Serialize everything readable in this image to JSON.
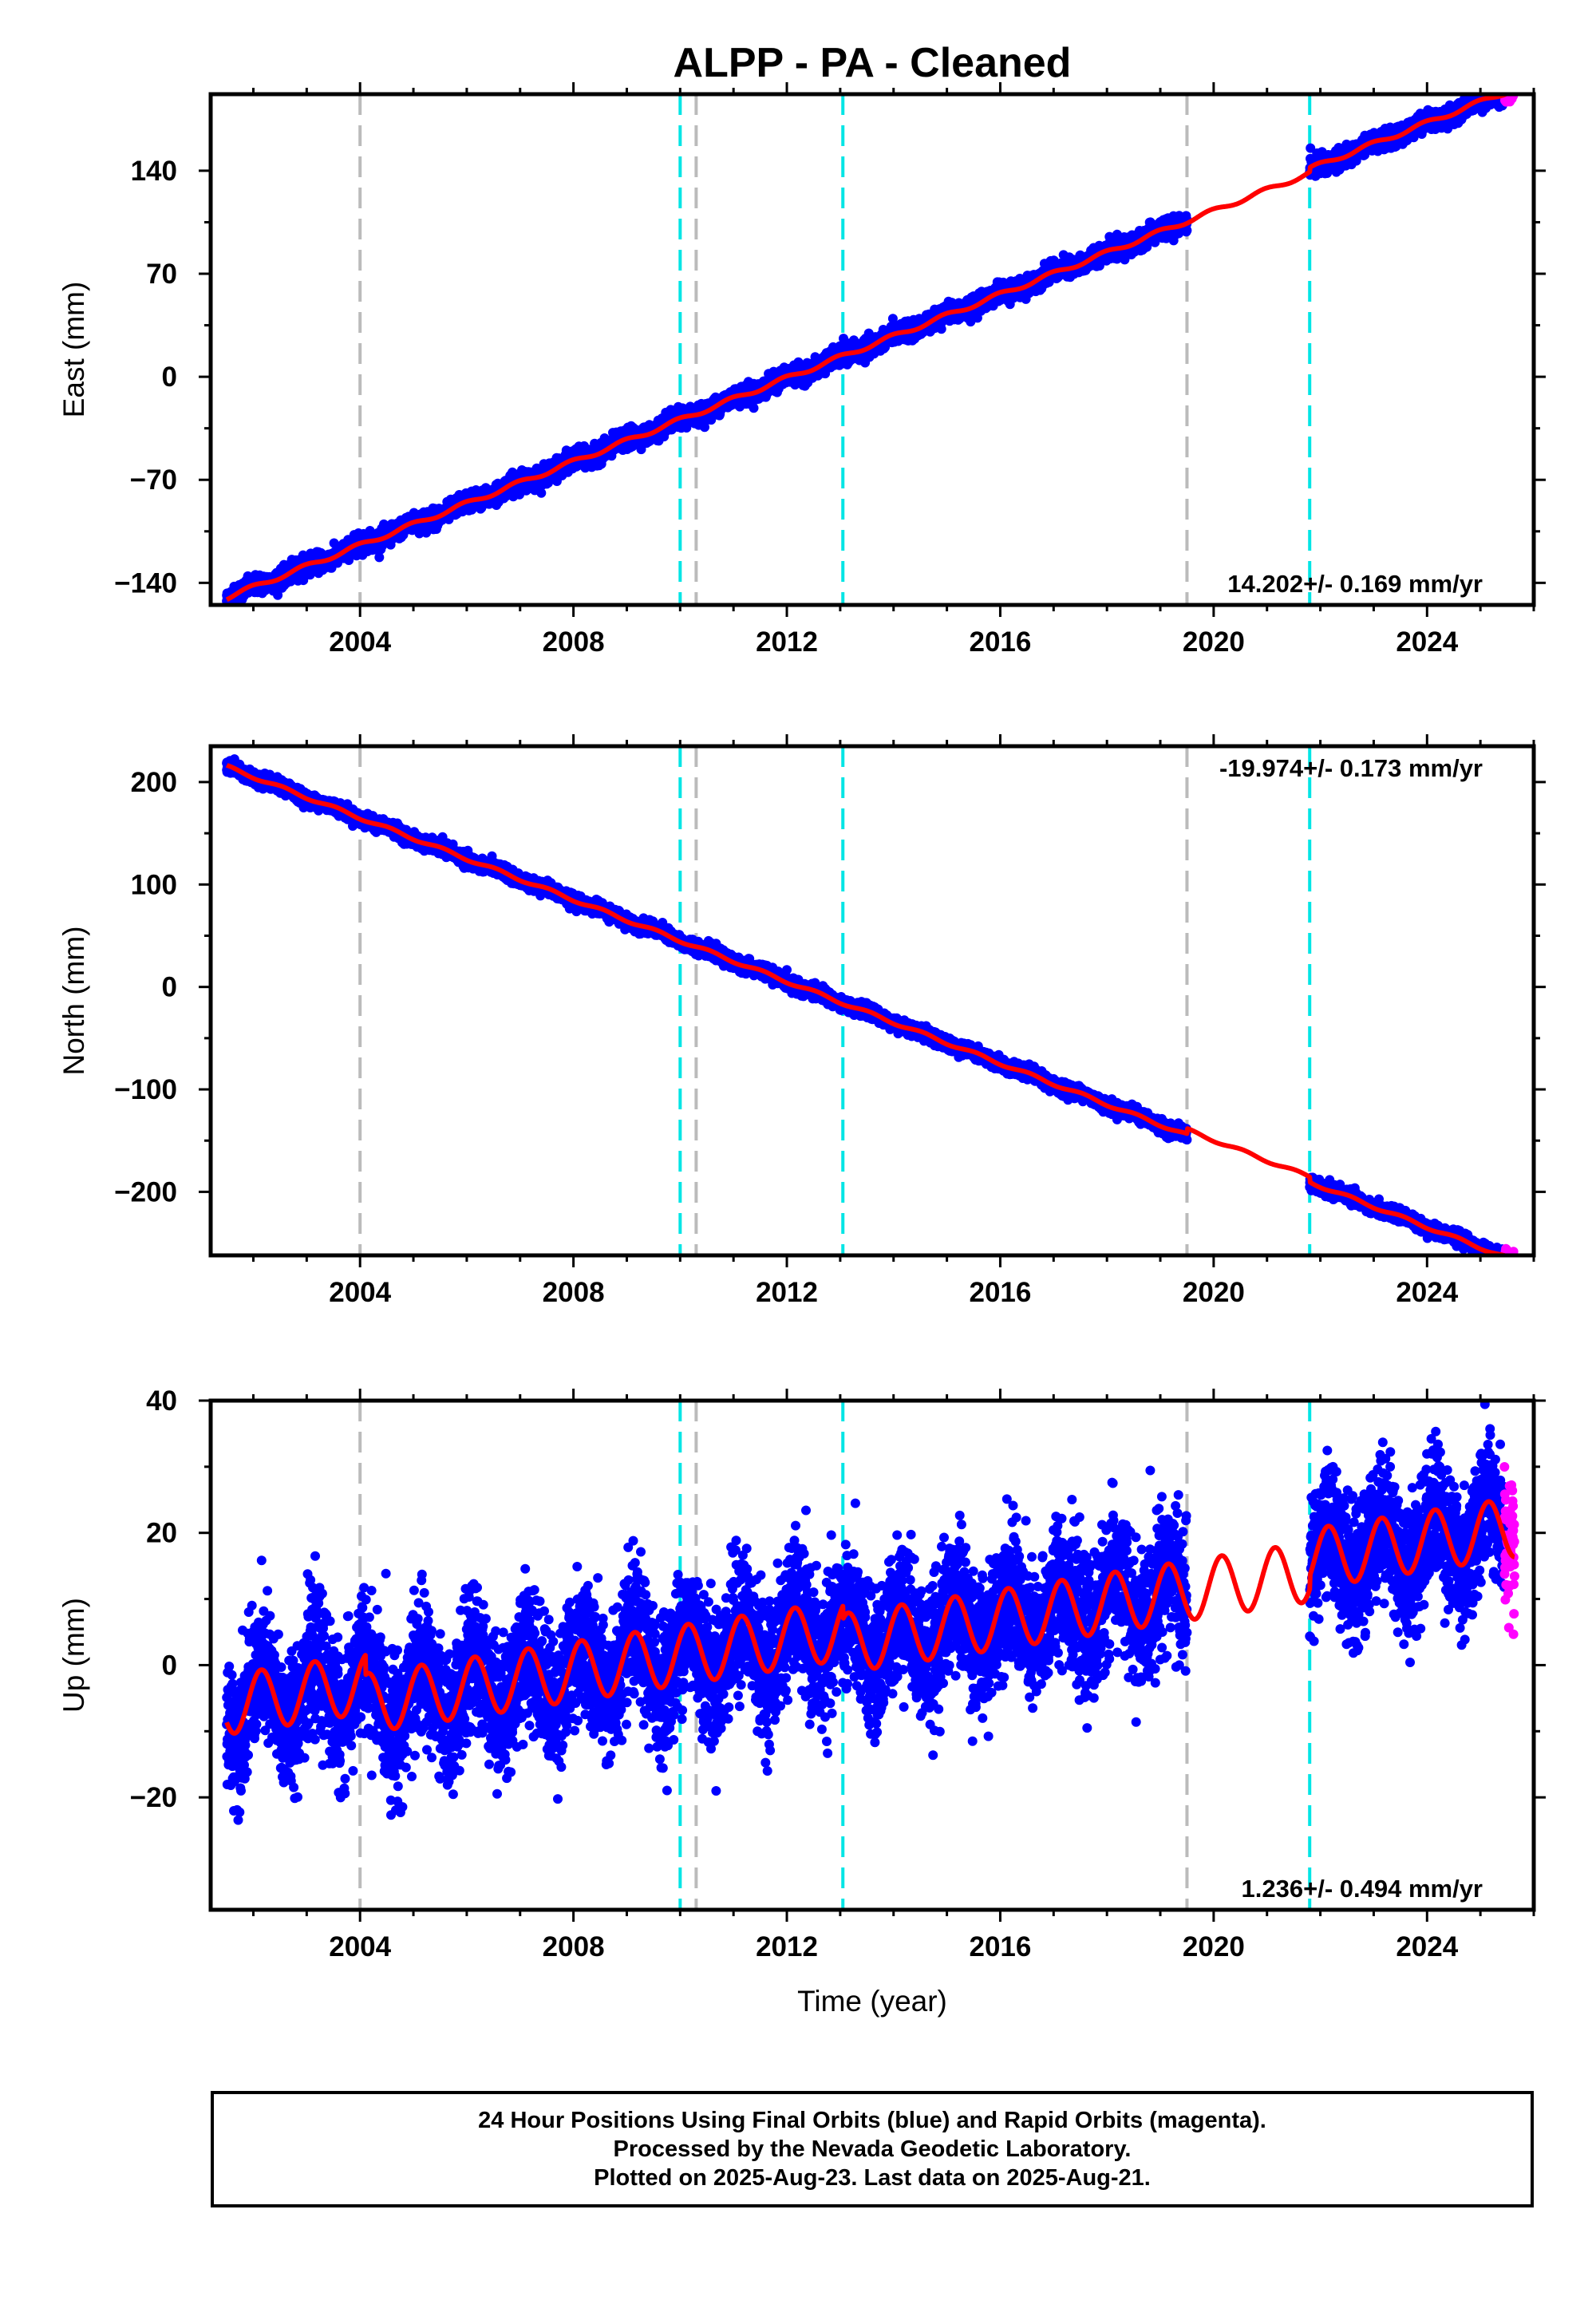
{
  "chart_data": {
    "type": "scatter",
    "title": "ALPP  - PA - Cleaned",
    "xlabel": "Time (year)",
    "x_ticks": [
      2004,
      2008,
      2012,
      2016,
      2020,
      2024
    ],
    "x_range": [
      2001.2,
      2026.0
    ],
    "grid": false,
    "data_start": 2001.5,
    "data_end": 2025.64,
    "data_gap": [
      2019.5,
      2021.8
    ],
    "rapid_start": 2025.45,
    "equipment_changes_gray": [
      2004.0,
      2010.3,
      2019.5
    ],
    "equipment_changes_cyan": [
      2010.0,
      2013.05,
      2021.8
    ],
    "colors": {
      "final_orbits": "#0000ff",
      "rapid_orbits": "#ff00ff",
      "model": "#ff0000",
      "gray_line": "#bbbbbb",
      "cyan_line": "#00e5e5",
      "frame": "#000000"
    },
    "panels": [
      {
        "ylabel": "East (mm)",
        "ylim": [
          -155,
          192
        ],
        "y_ticks": [
          -140,
          -70,
          0,
          70,
          140
        ],
        "y_tick_labels": [
          "−140",
          "−70",
          "0",
          "70",
          "140"
        ],
        "rate_label": "14.202+/- 0.169 mm/yr",
        "rate_position": "bottom-right",
        "model": {
          "start_value": -150,
          "rate": 14.202,
          "seasonal_amplitude": 1.5,
          "seasonal_phase": 0.3,
          "offsets": [
            {
              "year": 2021.8,
              "value": 3
            }
          ]
        },
        "scatter": 3
      },
      {
        "ylabel": "North (mm)",
        "ylim": [
          -262,
          235
        ],
        "y_ticks": [
          -200,
          -100,
          0,
          100,
          200
        ],
        "y_tick_labels": [
          "−200",
          "−100",
          "0",
          "100",
          "200"
        ],
        "rate_label": "-19.974+/- 0.173 mm/yr",
        "rate_position": "top-right",
        "model": {
          "start_value": 215,
          "rate": -19.974,
          "seasonal_amplitude": 1.5,
          "seasonal_phase": 0.7,
          "offsets": [
            {
              "year": 2019.5,
              "value": 5
            },
            {
              "year": 2021.8,
              "value": -5
            }
          ]
        },
        "scatter": 3
      },
      {
        "ylabel": "Up (mm)",
        "ylim": [
          -37,
          40
        ],
        "y_ticks": [
          -20,
          0,
          20,
          40
        ],
        "y_tick_labels": [
          "−20",
          "0",
          "20",
          "40"
        ],
        "rate_label": "1.236+/- 0.494 mm/yr",
        "rate_position": "bottom-right",
        "model": {
          "start_value": -6,
          "rate": 1.236,
          "seasonal_amplitude": 4.5,
          "seasonal_phase": 0.1,
          "offsets": [
            {
              "year": 2004.1,
              "value": -3
            },
            {
              "year": 2013.05,
              "value": -2
            },
            {
              "year": 2021.8,
              "value": 2
            }
          ]
        },
        "scatter": 5
      }
    ]
  },
  "footer": {
    "line1": "24 Hour Positions Using Final Orbits (blue) and Rapid Orbits (magenta).",
    "line2": "Processed by the Nevada Geodetic Laboratory.",
    "line3": "Plotted on 2025-Aug-23. Last data on 2025-Aug-21."
  }
}
